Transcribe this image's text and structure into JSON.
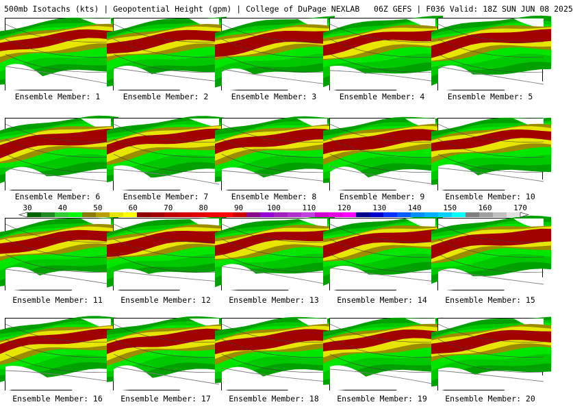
{
  "title": "500mb Isotachs (kts) | Geopotential Height (gpm) | College of DuPage NEXLAB   06Z GEFS | F036 Valid: 18Z SUN JUN 08 2025",
  "panels": [
    {
      "label": "Ensemble Member: 1"
    },
    {
      "label": "Ensemble Member: 2"
    },
    {
      "label": "Ensemble Member: 3"
    },
    {
      "label": "Ensemble Member: 4"
    },
    {
      "label": "Ensemble Member: 5"
    },
    {
      "label": "Ensemble Member: 6"
    },
    {
      "label": "Ensemble Member: 7"
    },
    {
      "label": "Ensemble Member: 8"
    },
    {
      "label": "Ensemble Member: 9"
    },
    {
      "label": "Ensemble Member: 10"
    },
    {
      "label": "Ensemble Member: 11"
    },
    {
      "label": "Ensemble Member: 12"
    },
    {
      "label": "Ensemble Member: 13"
    },
    {
      "label": "Ensemble Member: 14"
    },
    {
      "label": "Ensemble Member: 15"
    },
    {
      "label": "Ensemble Member: 16"
    },
    {
      "label": "Ensemble Member: 17"
    },
    {
      "label": "Ensemble Member: 18"
    },
    {
      "label": "Ensemble Member: 19"
    },
    {
      "label": "Ensemble Member: 20"
    }
  ],
  "colorbar": {
    "labels": [
      "30",
      "40",
      "50",
      "60",
      "70",
      "80",
      "90",
      "100",
      "110",
      "120",
      "130",
      "140",
      "150",
      "160",
      "170"
    ],
    "colors": [
      "#006400",
      "#228b22",
      "#32cd32",
      "#00ff00",
      "#8b7d00",
      "#b8a000",
      "#e6e600",
      "#ffff00",
      "#8b0000",
      "#a00000",
      "#c00000",
      "#d00000",
      "#e00000",
      "#f00000",
      "#ff0000",
      "#cc0000",
      "#8b008b",
      "#9400d3",
      "#a020c0",
      "#b030d0",
      "#c040e0",
      "#d000d0",
      "#e000e0",
      "#ff00ff",
      "#00008b",
      "#0000cd",
      "#0030ff",
      "#0060ff",
      "#0090ff",
      "#00b0ff",
      "#00d0ff",
      "#00ffff",
      "#808080",
      "#a0a0a0",
      "#c0c0c0",
      "#e0e0e0"
    ]
  },
  "colors": {
    "green_dark": "#00a000",
    "green": "#00c800",
    "green_light": "#00e600",
    "olive": "#9b8c00",
    "yellow": "#e6e600",
    "dark_red": "#a00000",
    "border": "#808080"
  }
}
